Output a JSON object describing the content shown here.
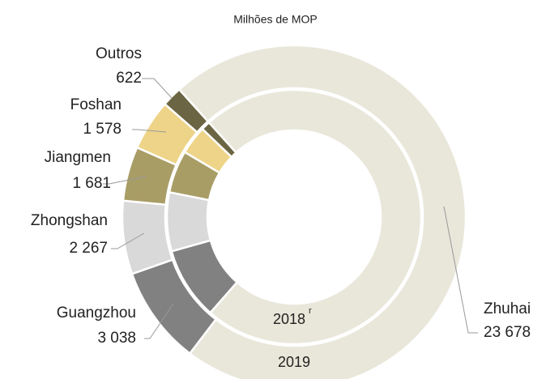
{
  "chart_data": {
    "type": "donut",
    "subtitle": "Milhões de MOP",
    "categories": [
      "Zhuhai",
      "Guangzhou",
      "Zhongshan",
      "Jiangmen",
      "Foshan",
      "Outros"
    ],
    "colors": [
      "#e9e7da",
      "#818181",
      "#d9d9d9",
      "#a99d66",
      "#eed488",
      "#6c6543"
    ],
    "series": [
      {
        "name": "2019",
        "ring": "outer",
        "values": [
          23678,
          3038,
          2267,
          1681,
          1578,
          622
        ],
        "value_labels": [
          "23 678",
          "3 038",
          "2 267",
          "1 681",
          "1 578",
          "622"
        ]
      },
      {
        "name": "2018",
        "note": "r",
        "ring": "inner",
        "values": [
          23000,
          2900,
          2350,
          1700,
          1150,
          360
        ]
      }
    ]
  }
}
